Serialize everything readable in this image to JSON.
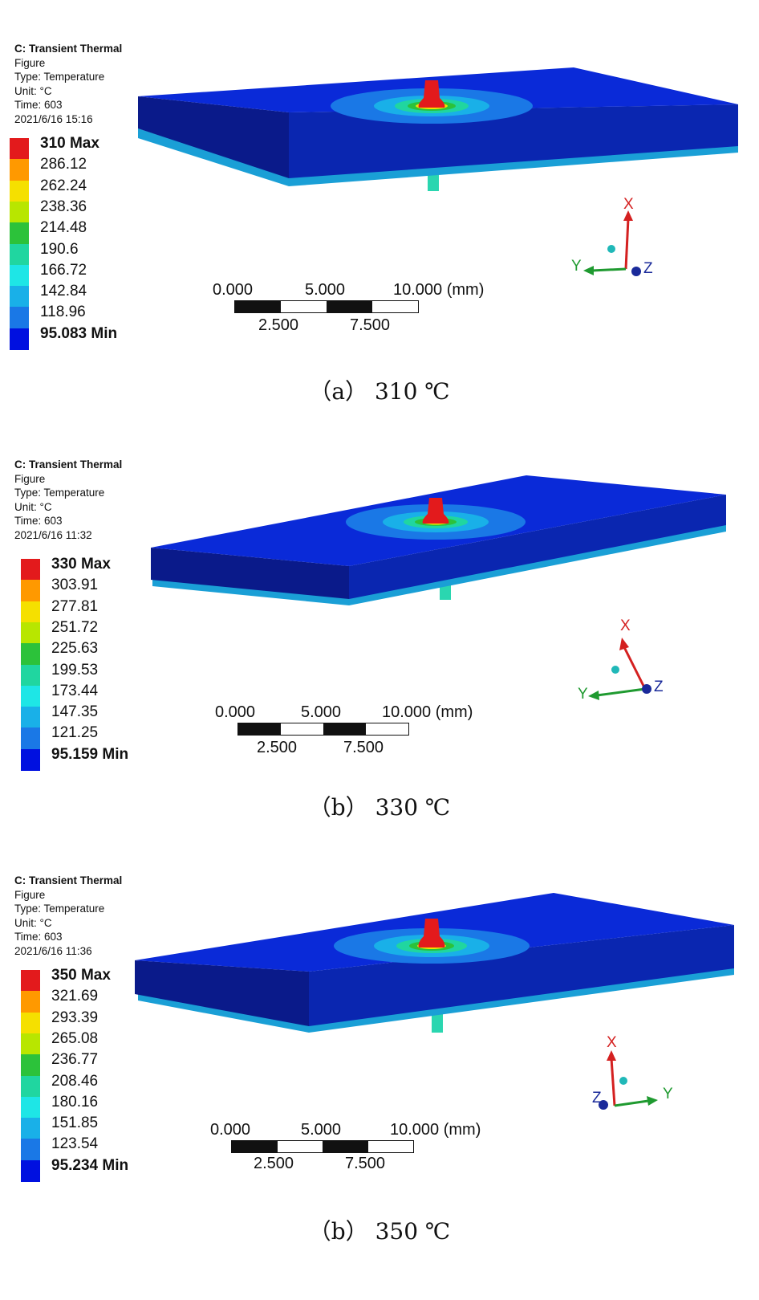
{
  "panels": [
    {
      "info": [
        "C: Transient Thermal",
        "Figure",
        "Type: Temperature",
        "Unit: °C",
        "Time: 603",
        "2021/6/16 15:16"
      ],
      "legend": [
        "310 Max",
        "286.12",
        "262.24",
        "238.36",
        "214.48",
        "190.6",
        "166.72",
        "142.84",
        "118.96",
        "95.083 Min"
      ],
      "scale_top": [
        "0.000",
        "5.000",
        "10.000 (mm)"
      ],
      "scale_bottom": [
        "2.500",
        "7.500"
      ],
      "triad": [
        "X",
        "Y",
        "Z"
      ],
      "caption": "（a） 310 ℃"
    },
    {
      "info": [
        "C: Transient Thermal",
        "Figure",
        "Type: Temperature",
        "Unit: °C",
        "Time: 603",
        "2021/6/16 11:32"
      ],
      "legend": [
        "330 Max",
        "303.91",
        "277.81",
        "251.72",
        "225.63",
        "199.53",
        "173.44",
        "147.35",
        "121.25",
        "95.159 Min"
      ],
      "scale_top": [
        "0.000",
        "5.000",
        "10.000 (mm)"
      ],
      "scale_bottom": [
        "2.500",
        "7.500"
      ],
      "triad": [
        "X",
        "Y",
        "Z"
      ],
      "caption": "（b） 330 ℃"
    },
    {
      "info": [
        "C: Transient Thermal",
        "Figure",
        "Type: Temperature",
        "Unit: °C",
        "Time: 603",
        "2021/6/16 11:36"
      ],
      "legend": [
        "350 Max",
        "321.69",
        "293.39",
        "265.08",
        "236.77",
        "208.46",
        "180.16",
        "151.85",
        "123.54",
        "95.234 Min"
      ],
      "scale_top": [
        "0.000",
        "5.000",
        "10.000 (mm)"
      ],
      "scale_bottom": [
        "2.500",
        "7.500"
      ],
      "triad": [
        "X",
        "Z",
        "Y"
      ],
      "caption": "（b） 350 ℃"
    }
  ],
  "colors": {
    "legend": [
      "#e31a1c",
      "#ff9900",
      "#f5e000",
      "#b8e600",
      "#2cc23a",
      "#20d6a0",
      "#1ee6e6",
      "#19b0e8",
      "#1a78e6",
      "#0010e0"
    ],
    "plate_top": "#0a2ad8",
    "plate_side": "#0a1a8a",
    "plate_edge": "#1a9fd6",
    "axis_x": "#d42020",
    "axis_y": "#1f9a30",
    "axis_z": "#1a2a9a"
  }
}
